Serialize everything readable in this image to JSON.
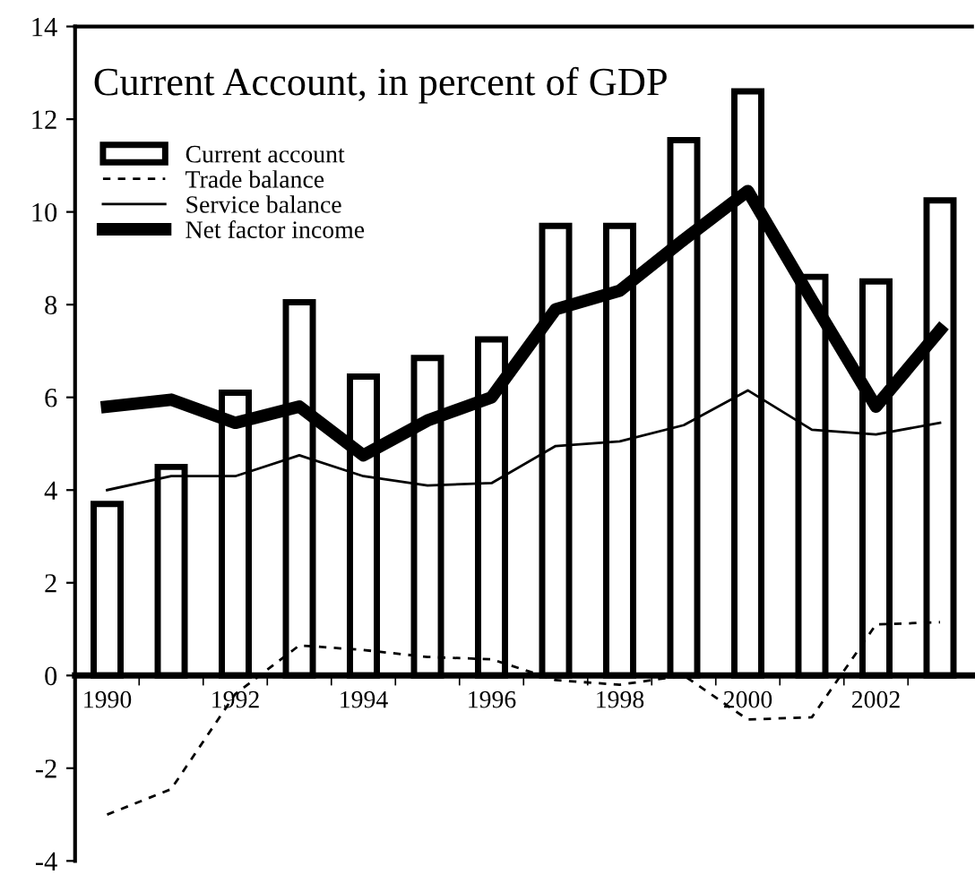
{
  "chart_data": {
    "type": "bar",
    "title": "Current Account, in percent of GDP",
    "categories": [
      "1990",
      null,
      "1992",
      null,
      "1994",
      null,
      "1996",
      null,
      "1998",
      null,
      "2000",
      null,
      "2002",
      null
    ],
    "series": [
      {
        "name": "Current account",
        "type": "bar",
        "color": "#ffffff",
        "values": [
          3.7,
          4.5,
          6.1,
          8.05,
          6.45,
          6.85,
          7.25,
          9.7,
          9.7,
          11.55,
          12.6,
          8.6,
          8.5,
          10.25
        ]
      },
      {
        "name": "Trade balance",
        "type": "line",
        "color": "#000000",
        "line_style": "dashed",
        "values": [
          -3.0,
          -2.45,
          -0.4,
          0.65,
          0.55,
          0.4,
          0.35,
          -0.1,
          -0.2,
          0.0,
          -0.95,
          -0.9,
          1.1,
          1.15
        ]
      },
      {
        "name": "Service balance",
        "type": "line",
        "color": "#000000",
        "line_style": "solid",
        "values": [
          4.0,
          4.3,
          4.3,
          4.75,
          4.3,
          4.1,
          4.15,
          4.95,
          5.05,
          5.4,
          6.15,
          5.3,
          5.2,
          5.45
        ]
      },
      {
        "name": "Net factor income",
        "type": "line",
        "color": "#000000",
        "line_style": "solid",
        "values": [
          5.8,
          5.95,
          5.45,
          5.8,
          4.75,
          5.5,
          6.0,
          7.9,
          8.3,
          9.4,
          10.45,
          8.1,
          5.8,
          7.45
        ]
      }
    ],
    "ylim": [
      -4,
      14
    ],
    "yticks": [
      -4,
      -2,
      0,
      2,
      4,
      6,
      8,
      10,
      12,
      14
    ],
    "legend": "top left",
    "grid": false
  }
}
